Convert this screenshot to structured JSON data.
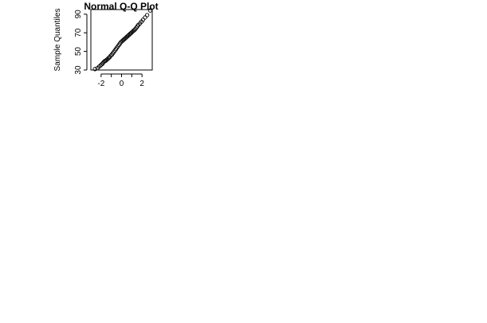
{
  "chart_data": {
    "type": "scatter",
    "title": "Normal Q-Q Plot",
    "xlabel": "",
    "ylabel": "Sample Quantiles",
    "xlim": [
      -3,
      3
    ],
    "ylim": [
      30,
      95
    ],
    "x_ticks": [
      -2,
      -1,
      0,
      1,
      2
    ],
    "x_tick_labels": [
      "-2",
      "",
      "0",
      "",
      "2"
    ],
    "y_ticks": [
      30,
      50,
      70,
      90
    ],
    "y_tick_labels": [
      "30",
      "50",
      "70",
      "90"
    ],
    "marker": "open-circle",
    "grid": false,
    "legend": "none",
    "points": [
      {
        "x": -2.6,
        "y": 31
      },
      {
        "x": -2.35,
        "y": 32
      },
      {
        "x": -2.2,
        "y": 33.5
      },
      {
        "x": -2.05,
        "y": 35
      },
      {
        "x": -1.95,
        "y": 36
      },
      {
        "x": -1.85,
        "y": 37
      },
      {
        "x": -1.75,
        "y": 38.5
      },
      {
        "x": -1.65,
        "y": 39.5
      },
      {
        "x": -1.55,
        "y": 40
      },
      {
        "x": -1.45,
        "y": 41
      },
      {
        "x": -1.35,
        "y": 42
      },
      {
        "x": -1.25,
        "y": 43
      },
      {
        "x": -1.15,
        "y": 44
      },
      {
        "x": -1.05,
        "y": 45.5
      },
      {
        "x": -0.95,
        "y": 46.5
      },
      {
        "x": -0.85,
        "y": 48
      },
      {
        "x": -0.75,
        "y": 49.5
      },
      {
        "x": -0.65,
        "y": 51
      },
      {
        "x": -0.55,
        "y": 52.5
      },
      {
        "x": -0.45,
        "y": 54
      },
      {
        "x": -0.35,
        "y": 55.5
      },
      {
        "x": -0.25,
        "y": 57
      },
      {
        "x": -0.15,
        "y": 58.5
      },
      {
        "x": -0.05,
        "y": 60
      },
      {
        "x": 0.05,
        "y": 61
      },
      {
        "x": 0.15,
        "y": 62
      },
      {
        "x": 0.25,
        "y": 63
      },
      {
        "x": 0.35,
        "y": 64
      },
      {
        "x": 0.45,
        "y": 65
      },
      {
        "x": 0.55,
        "y": 66
      },
      {
        "x": 0.65,
        "y": 67
      },
      {
        "x": 0.75,
        "y": 68
      },
      {
        "x": 0.85,
        "y": 69
      },
      {
        "x": 0.95,
        "y": 70
      },
      {
        "x": 1.05,
        "y": 71
      },
      {
        "x": 1.15,
        "y": 72
      },
      {
        "x": 1.25,
        "y": 73
      },
      {
        "x": 1.35,
        "y": 74
      },
      {
        "x": 1.45,
        "y": 75.5
      },
      {
        "x": 1.55,
        "y": 77
      },
      {
        "x": 1.65,
        "y": 78.5
      },
      {
        "x": 1.8,
        "y": 80
      },
      {
        "x": 1.95,
        "y": 82
      },
      {
        "x": 2.1,
        "y": 84
      },
      {
        "x": 2.3,
        "y": 86.5
      },
      {
        "x": 2.5,
        "y": 89
      },
      {
        "x": 2.8,
        "y": 94
      }
    ]
  }
}
